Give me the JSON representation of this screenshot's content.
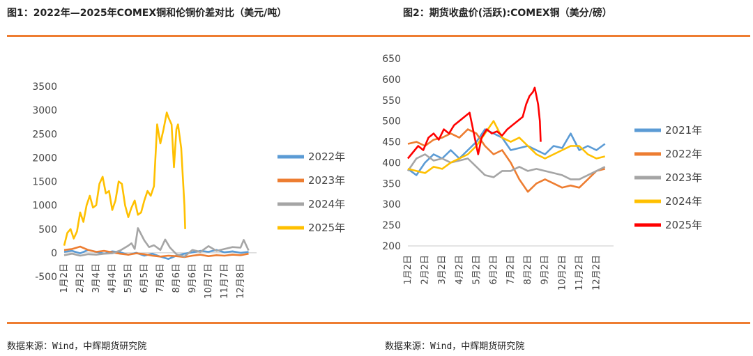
{
  "header": {
    "fig1_title": "图1：2022年—2025年COMEX铜和伦铜价差对比（美元/吨）",
    "fig2_title": "图2：期货收盘价(活跃):COMEX铜（美分/磅）"
  },
  "footer": {
    "source_left": "数据来源：Wind，中辉期货研究院",
    "source_right": "数据来源：Wind，中辉期货研究院"
  },
  "colors": {
    "rule": "#ee7d31",
    "series_2021": "#5b9bd5",
    "series_2022": "#ed7d31",
    "series_2023": "#a5a5a5",
    "series_2024": "#ffc000",
    "series_2025": "#ff0000"
  },
  "chart_data": [
    {
      "type": "line",
      "title": "图1：2022年—2025年COMEX铜和伦铜价差对比（美元/吨）",
      "ylim": [
        -500,
        3500
      ],
      "yticks": [
        "-500",
        "0",
        "500",
        "1000",
        "1500",
        "2000",
        "2500",
        "3000",
        "3500"
      ],
      "x_tick_labels": [
        "1月2日",
        "2月2日",
        "3月4日",
        "4月4日",
        "5月5日",
        "6月5日",
        "7月6日",
        "8月6日",
        "9月6日",
        "10月7日",
        "11月7日",
        "12月8日"
      ],
      "legend_position": "right",
      "legend": [
        "2022年",
        "2023年",
        "2024年",
        "2025年"
      ],
      "series": [
        {
          "name": "2022年",
          "color": "#5b9bd5",
          "x": [
            0,
            0.5,
            1,
            1.5,
            2,
            2.5,
            3,
            3.5,
            4,
            4.5,
            5,
            5.5,
            6,
            6.5,
            7,
            7.5,
            8,
            8.5,
            9,
            9.5,
            10,
            10.5,
            11,
            11.5
          ],
          "y": [
            20,
            40,
            -10,
            60,
            20,
            -20,
            30,
            10,
            -40,
            0,
            -60,
            -20,
            -80,
            -130,
            -60,
            -20,
            10,
            40,
            20,
            60,
            10,
            30,
            0,
            20
          ]
        },
        {
          "name": "2023年",
          "color": "#ed7d31",
          "x": [
            0,
            0.5,
            1,
            1.5,
            2,
            2.5,
            3,
            3.5,
            4,
            4.5,
            5,
            5.5,
            6,
            6.5,
            7,
            7.5,
            8,
            8.5,
            9,
            9.5,
            10,
            10.5,
            11,
            11.5
          ],
          "y": [
            60,
            80,
            130,
            60,
            20,
            40,
            10,
            -20,
            -40,
            -10,
            -30,
            -60,
            -80,
            -60,
            -70,
            -90,
            -60,
            -40,
            -70,
            -50,
            -60,
            -40,
            -50,
            -20
          ]
        },
        {
          "name": "2024年",
          "color": "#a5a5a5",
          "x": [
            0,
            0.5,
            1,
            1.5,
            2,
            2.5,
            3,
            3.5,
            4,
            4.2,
            4.4,
            4.6,
            5,
            5.3,
            5.6,
            6,
            6.3,
            6.6,
            7,
            7.5,
            8,
            8.5,
            9,
            9.5,
            10,
            10.5,
            11,
            11.2,
            11.5
          ],
          "y": [
            -50,
            -20,
            -60,
            -30,
            -40,
            -20,
            -10,
            50,
            150,
            200,
            80,
            520,
            260,
            120,
            160,
            60,
            280,
            110,
            -30,
            -80,
            60,
            20,
            140,
            40,
            80,
            120,
            110,
            270,
            50
          ]
        },
        {
          "name": "2025年",
          "color": "#ffc000",
          "x": [
            0,
            0.2,
            0.4,
            0.6,
            0.8,
            1,
            1.2,
            1.4,
            1.6,
            1.8,
            2,
            2.2,
            2.4,
            2.6,
            2.8,
            3,
            3.2,
            3.4,
            3.6,
            3.8,
            4,
            4.2,
            4.4,
            4.6,
            4.8,
            5,
            5.2,
            5.4,
            5.6,
            5.8,
            6,
            6.2,
            6.4,
            6.5,
            6.7,
            6.85,
            7,
            7.1,
            7.3,
            7.4,
            7.5,
            7.55
          ],
          "y": [
            150,
            420,
            500,
            300,
            450,
            850,
            650,
            1000,
            1200,
            950,
            1000,
            1450,
            1600,
            1250,
            1300,
            900,
            1100,
            1500,
            1450,
            1000,
            750,
            950,
            1100,
            800,
            850,
            1100,
            1300,
            1200,
            1400,
            2700,
            2300,
            2600,
            2950,
            2850,
            2700,
            1800,
            2600,
            2700,
            2200,
            1600,
            1000,
            500
          ]
        }
      ]
    },
    {
      "type": "line",
      "title": "图2：期货收盘价(活跃):COMEX铜（美分/磅）",
      "ylim": [
        200,
        650
      ],
      "yticks": [
        "200",
        "250",
        "300",
        "350",
        "400",
        "450",
        "500",
        "550",
        "600",
        "650"
      ],
      "x_tick_labels": [
        "1月2日",
        "2月2日",
        "3月2日",
        "4月2日",
        "5月2日",
        "6月2日",
        "7月2日",
        "8月2日",
        "9月2日",
        "10月2日",
        "11月2日",
        "12月2日"
      ],
      "legend_position": "right",
      "legend": [
        "2021年",
        "2022年",
        "2023年",
        "2024年",
        "2025年"
      ],
      "series": [
        {
          "name": "2021年",
          "color": "#5b9bd5",
          "x": [
            0,
            0.5,
            1,
            1.5,
            2,
            2.5,
            3,
            3.5,
            4,
            4.5,
            5,
            5.5,
            6,
            6.5,
            7,
            7.5,
            8,
            8.5,
            9,
            9.5,
            10,
            10.5,
            11,
            11.5
          ],
          "y": [
            385,
            370,
            400,
            420,
            410,
            430,
            410,
            430,
            450,
            480,
            470,
            460,
            430,
            435,
            440,
            430,
            420,
            440,
            435,
            470,
            430,
            440,
            430,
            445
          ]
        },
        {
          "name": "2022年",
          "color": "#ed7d31",
          "x": [
            0,
            0.5,
            1,
            1.5,
            2,
            2.5,
            3,
            3.5,
            4,
            4.5,
            5,
            5.5,
            6,
            6.5,
            7,
            7.5,
            8,
            8.5,
            9,
            9.5,
            10,
            10.5,
            11,
            11.5
          ],
          "y": [
            445,
            450,
            440,
            455,
            460,
            470,
            460,
            480,
            470,
            440,
            420,
            430,
            400,
            360,
            330,
            350,
            360,
            350,
            340,
            345,
            340,
            360,
            380,
            385
          ]
        },
        {
          "name": "2023年",
          "color": "#a5a5a5",
          "x": [
            0,
            0.5,
            1,
            1.5,
            2,
            2.5,
            3,
            3.5,
            4,
            4.5,
            5,
            5.5,
            6,
            6.5,
            7,
            7.5,
            8,
            8.5,
            9,
            9.5,
            10,
            10.5,
            11,
            11.5
          ],
          "y": [
            380,
            410,
            420,
            405,
            410,
            400,
            405,
            410,
            390,
            370,
            365,
            380,
            380,
            390,
            380,
            385,
            380,
            375,
            370,
            360,
            360,
            370,
            380,
            390
          ]
        },
        {
          "name": "2024年",
          "color": "#ffc000",
          "x": [
            0,
            0.5,
            1,
            1.5,
            2,
            2.5,
            3,
            3.5,
            4,
            4.5,
            5,
            5.5,
            6,
            6.5,
            7,
            7.5,
            8,
            8.5,
            9,
            9.5,
            10,
            10.5,
            11,
            11.5
          ],
          "y": [
            385,
            380,
            375,
            390,
            385,
            400,
            410,
            420,
            440,
            470,
            500,
            460,
            450,
            460,
            440,
            420,
            410,
            420,
            430,
            440,
            440,
            420,
            410,
            415
          ]
        },
        {
          "name": "2025年",
          "color": "#ff0000",
          "x": [
            0,
            0.3,
            0.6,
            0.9,
            1.2,
            1.5,
            1.8,
            2.1,
            2.4,
            2.7,
            3,
            3.3,
            3.6,
            3.9,
            4.1,
            4.3,
            4.6,
            4.9,
            5.2,
            5.5,
            5.8,
            6.1,
            6.4,
            6.7,
            6.9,
            7.1,
            7.3,
            7.4,
            7.5,
            7.6,
            7.7,
            7.75
          ],
          "y": [
            410,
            425,
            440,
            430,
            460,
            470,
            455,
            480,
            470,
            490,
            500,
            510,
            520,
            460,
            420,
            460,
            480,
            470,
            475,
            465,
            480,
            490,
            500,
            510,
            540,
            560,
            570,
            580,
            560,
            540,
            500,
            450
          ]
        }
      ]
    }
  ]
}
